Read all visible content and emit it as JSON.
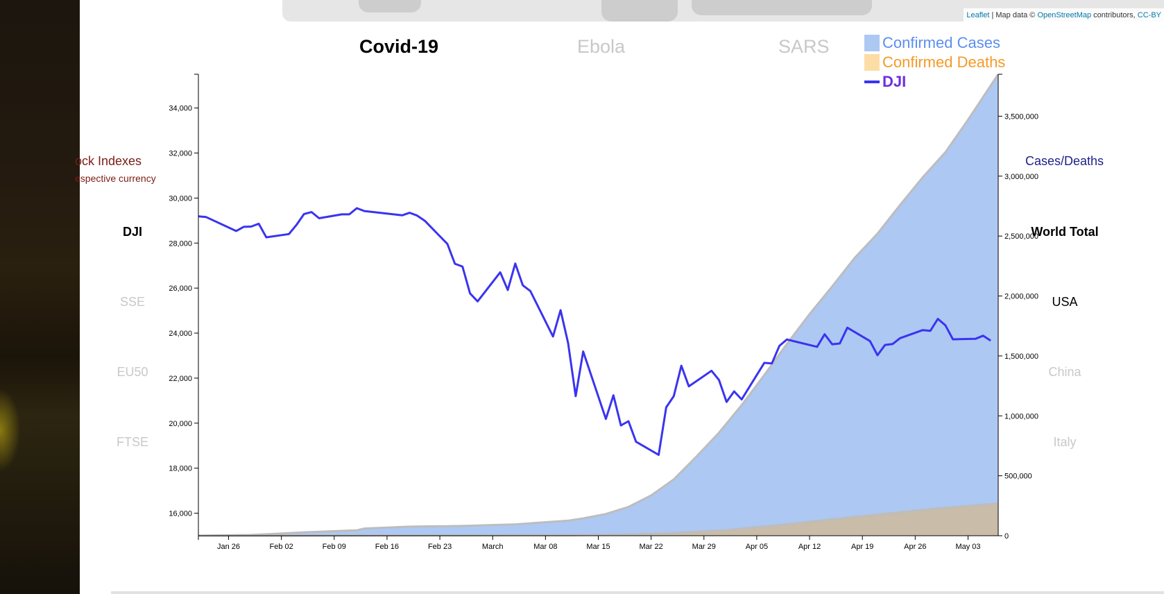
{
  "attribution": {
    "leaflet": "Leaflet",
    "map_data": " | Map data © ",
    "osm": "OpenStreetMap",
    "contributors": " contributors, ",
    "ccby": "CC-BY"
  },
  "tabs": [
    {
      "label": "Covid-19",
      "state": "active"
    },
    {
      "label": "Ebola",
      "state": "inactive"
    },
    {
      "label": "SARS",
      "state": "inactive"
    }
  ],
  "left_panel": {
    "title": "ock Indexes",
    "subtitle": "espective currency",
    "items": [
      {
        "label": "DJI",
        "state": "active"
      },
      {
        "label": "SSE",
        "state": "inactive"
      },
      {
        "label": "EU50",
        "state": "inactive"
      },
      {
        "label": "FTSE",
        "state": "inactive"
      }
    ]
  },
  "right_panel": {
    "title": "Cases/Deaths",
    "items": [
      {
        "label": "World Total",
        "state": "active"
      },
      {
        "label": "USA",
        "state": "normal"
      },
      {
        "label": "China",
        "state": "inactive"
      },
      {
        "label": "Italy",
        "state": "inactive"
      }
    ]
  },
  "colors": {
    "cases": "#adc8f3",
    "cases_text": "#5b8ef0",
    "deaths": "#c9bca8",
    "deaths_swatch": "#fddda6",
    "deaths_text": "#f59a25",
    "dji": "#3a33f0",
    "dji_text": "#6b2fe0",
    "area_stroke": "#bdbdbd"
  },
  "chart_data": {
    "type": "line",
    "legend": [
      "Confirmed Cases",
      "Confirmed Deaths",
      "DJI"
    ],
    "left_axis": {
      "ylim": [
        15000,
        35500
      ],
      "ticks": [
        16000,
        18000,
        20000,
        22000,
        24000,
        26000,
        28000,
        30000,
        32000,
        34000
      ]
    },
    "right_axis": {
      "ylim": [
        0,
        3850000
      ],
      "ticks": [
        0,
        500000,
        1000000,
        1500000,
        2000000,
        2500000,
        3000000,
        3500000
      ]
    },
    "x_range": [
      "2020-01-22",
      "2020-05-07"
    ],
    "x_ticks": [
      {
        "date": "2020-01-26",
        "label": "Jan 26"
      },
      {
        "date": "2020-02-02",
        "label": "Feb 02"
      },
      {
        "date": "2020-02-09",
        "label": "Feb 09"
      },
      {
        "date": "2020-02-16",
        "label": "Feb 16"
      },
      {
        "date": "2020-02-23",
        "label": "Feb 23"
      },
      {
        "date": "2020-03-01",
        "label": "March"
      },
      {
        "date": "2020-03-08",
        "label": "Mar 08"
      },
      {
        "date": "2020-03-15",
        "label": "Mar 15"
      },
      {
        "date": "2020-03-22",
        "label": "Mar 22"
      },
      {
        "date": "2020-03-29",
        "label": "Mar 29"
      },
      {
        "date": "2020-04-05",
        "label": "Apr 05"
      },
      {
        "date": "2020-04-12",
        "label": "Apr 12"
      },
      {
        "date": "2020-04-19",
        "label": "Apr 19"
      },
      {
        "date": "2020-04-26",
        "label": "Apr 26"
      },
      {
        "date": "2020-05-03",
        "label": "May 03"
      }
    ],
    "cases": [
      [
        "2020-01-22",
        555
      ],
      [
        "2020-01-29",
        6165
      ],
      [
        "2020-02-05",
        28276
      ],
      [
        "2020-02-12",
        45212
      ],
      [
        "2020-02-13",
        60381
      ],
      [
        "2020-02-19",
        75641
      ],
      [
        "2020-02-26",
        81400
      ],
      [
        "2020-03-04",
        95123
      ],
      [
        "2020-03-11",
        125865
      ],
      [
        "2020-03-13",
        145000
      ],
      [
        "2020-03-16",
        181000
      ],
      [
        "2020-03-19",
        240000
      ],
      [
        "2020-03-22",
        336000
      ],
      [
        "2020-03-25",
        470000
      ],
      [
        "2020-03-28",
        660000
      ],
      [
        "2020-03-31",
        860000
      ],
      [
        "2020-04-03",
        1090000
      ],
      [
        "2020-04-06",
        1340000
      ],
      [
        "2020-04-09",
        1600000
      ],
      [
        "2020-04-12",
        1850000
      ],
      [
        "2020-04-15",
        2080000
      ],
      [
        "2020-04-18",
        2320000
      ],
      [
        "2020-04-21",
        2520000
      ],
      [
        "2020-04-24",
        2760000
      ],
      [
        "2020-04-27",
        2990000
      ],
      [
        "2020-04-30",
        3200000
      ],
      [
        "2020-05-03",
        3470000
      ],
      [
        "2020-05-07",
        3850000
      ]
    ],
    "deaths": [
      [
        "2020-01-22",
        17
      ],
      [
        "2020-02-01",
        259
      ],
      [
        "2020-02-12",
        1100
      ],
      [
        "2020-02-26",
        2770
      ],
      [
        "2020-03-11",
        4600
      ],
      [
        "2020-03-18",
        9000
      ],
      [
        "2020-03-25",
        22000
      ],
      [
        "2020-04-01",
        47000
      ],
      [
        "2020-04-08",
        89000
      ],
      [
        "2020-04-15",
        137000
      ],
      [
        "2020-04-22",
        183000
      ],
      [
        "2020-04-29",
        228000
      ],
      [
        "2020-05-07",
        269000
      ]
    ],
    "dji": [
      [
        "2020-01-22",
        29186
      ],
      [
        "2020-01-23",
        29160
      ],
      [
        "2020-01-27",
        28535
      ],
      [
        "2020-01-28",
        28722
      ],
      [
        "2020-01-29",
        28734
      ],
      [
        "2020-01-30",
        28859
      ],
      [
        "2020-01-31",
        28256
      ],
      [
        "2020-02-03",
        28399
      ],
      [
        "2020-02-04",
        28807
      ],
      [
        "2020-02-05",
        29290
      ],
      [
        "2020-02-06",
        29379
      ],
      [
        "2020-02-07",
        29102
      ],
      [
        "2020-02-10",
        29276
      ],
      [
        "2020-02-11",
        29276
      ],
      [
        "2020-02-12",
        29551
      ],
      [
        "2020-02-13",
        29423
      ],
      [
        "2020-02-18",
        29232
      ],
      [
        "2020-02-19",
        29348
      ],
      [
        "2020-02-20",
        29219
      ],
      [
        "2020-02-21",
        28992
      ],
      [
        "2020-02-24",
        27961
      ],
      [
        "2020-02-25",
        27081
      ],
      [
        "2020-02-26",
        26957
      ],
      [
        "2020-02-27",
        25766
      ],
      [
        "2020-02-28",
        25409
      ],
      [
        "2020-03-02",
        26703
      ],
      [
        "2020-03-03",
        25917
      ],
      [
        "2020-03-04",
        27091
      ],
      [
        "2020-03-05",
        26121
      ],
      [
        "2020-03-06",
        25865
      ],
      [
        "2020-03-09",
        23851
      ],
      [
        "2020-03-10",
        25018
      ],
      [
        "2020-03-11",
        23553
      ],
      [
        "2020-03-12",
        21200
      ],
      [
        "2020-03-13",
        23185
      ],
      [
        "2020-03-16",
        20189
      ],
      [
        "2020-03-17",
        21237
      ],
      [
        "2020-03-18",
        19899
      ],
      [
        "2020-03-19",
        20087
      ],
      [
        "2020-03-20",
        19174
      ],
      [
        "2020-03-23",
        18592
      ],
      [
        "2020-03-24",
        20704
      ],
      [
        "2020-03-25",
        21200
      ],
      [
        "2020-03-26",
        22552
      ],
      [
        "2020-03-27",
        21637
      ],
      [
        "2020-03-30",
        22327
      ],
      [
        "2020-03-31",
        21917
      ],
      [
        "2020-04-01",
        20943
      ],
      [
        "2020-04-02",
        21413
      ],
      [
        "2020-04-03",
        21053
      ],
      [
        "2020-04-06",
        22680
      ],
      [
        "2020-04-07",
        22654
      ],
      [
        "2020-04-08",
        23434
      ],
      [
        "2020-04-09",
        23719
      ],
      [
        "2020-04-13",
        23390
      ],
      [
        "2020-04-14",
        23949
      ],
      [
        "2020-04-15",
        23504
      ],
      [
        "2020-04-16",
        23538
      ],
      [
        "2020-04-17",
        24242
      ],
      [
        "2020-04-20",
        23650
      ],
      [
        "2020-04-21",
        23018
      ],
      [
        "2020-04-22",
        23475
      ],
      [
        "2020-04-23",
        23515
      ],
      [
        "2020-04-24",
        23775
      ],
      [
        "2020-04-27",
        24134
      ],
      [
        "2020-04-28",
        24101
      ],
      [
        "2020-04-29",
        24634
      ],
      [
        "2020-04-30",
        24346
      ],
      [
        "2020-05-01",
        23723
      ],
      [
        "2020-05-04",
        23750
      ],
      [
        "2020-05-05",
        23883
      ],
      [
        "2020-05-06",
        23664
      ]
    ]
  }
}
